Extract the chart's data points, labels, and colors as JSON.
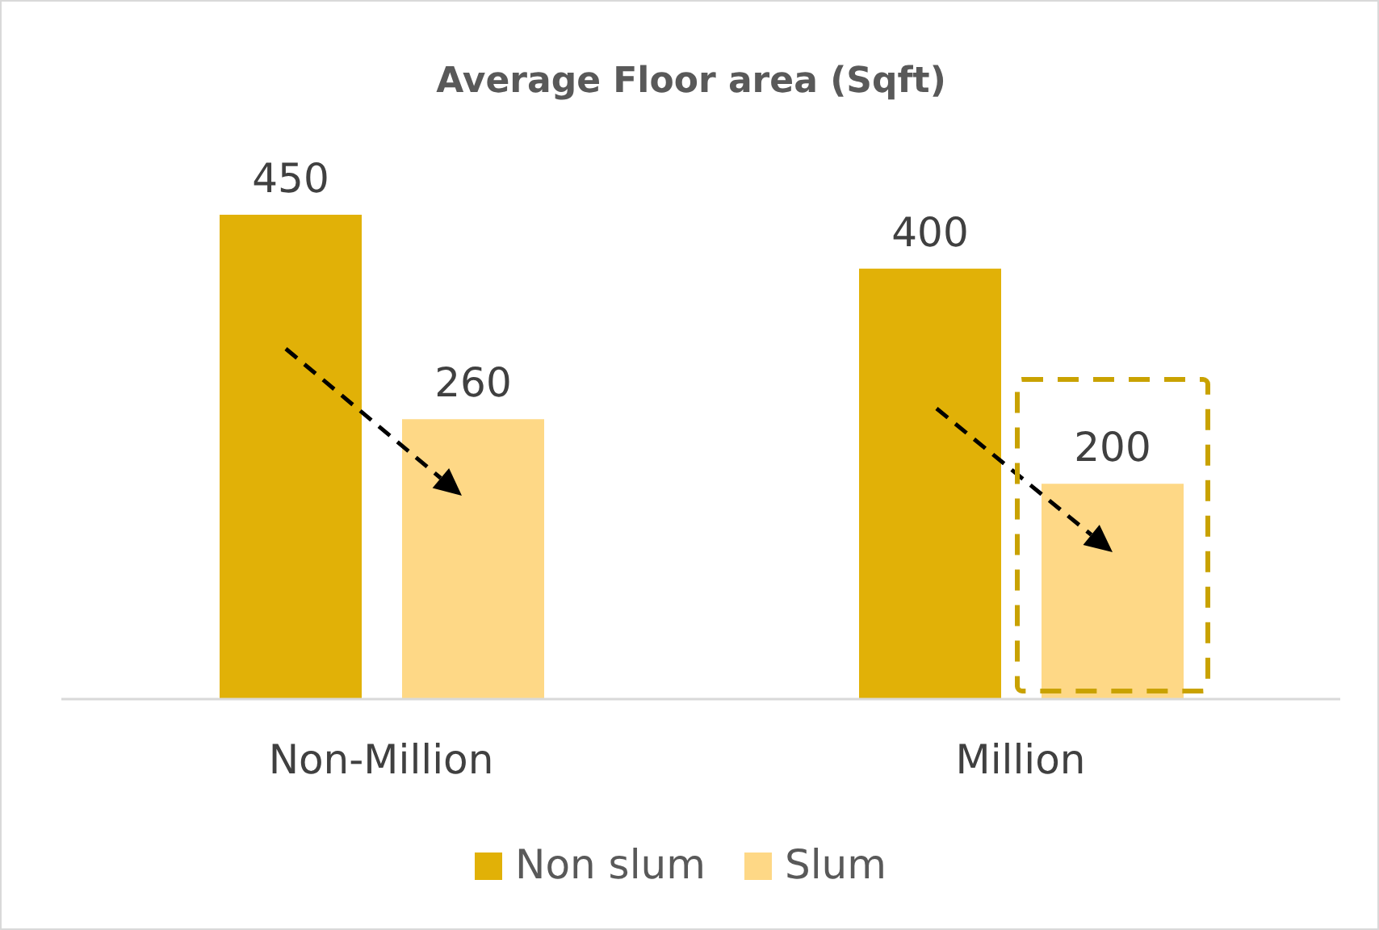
{
  "chart_data": {
    "type": "bar",
    "title": "Average Floor area (Sqft)",
    "categories": [
      "Non-Million",
      "Million"
    ],
    "series": [
      {
        "name": "Non slum",
        "color": "#e1b107",
        "values": [
          450,
          400
        ]
      },
      {
        "name": "Slum",
        "color": "#fed886",
        "values": [
          260,
          200
        ]
      }
    ],
    "data_labels": true,
    "legend": "bottom",
    "tick_labels": "x"
  }
}
